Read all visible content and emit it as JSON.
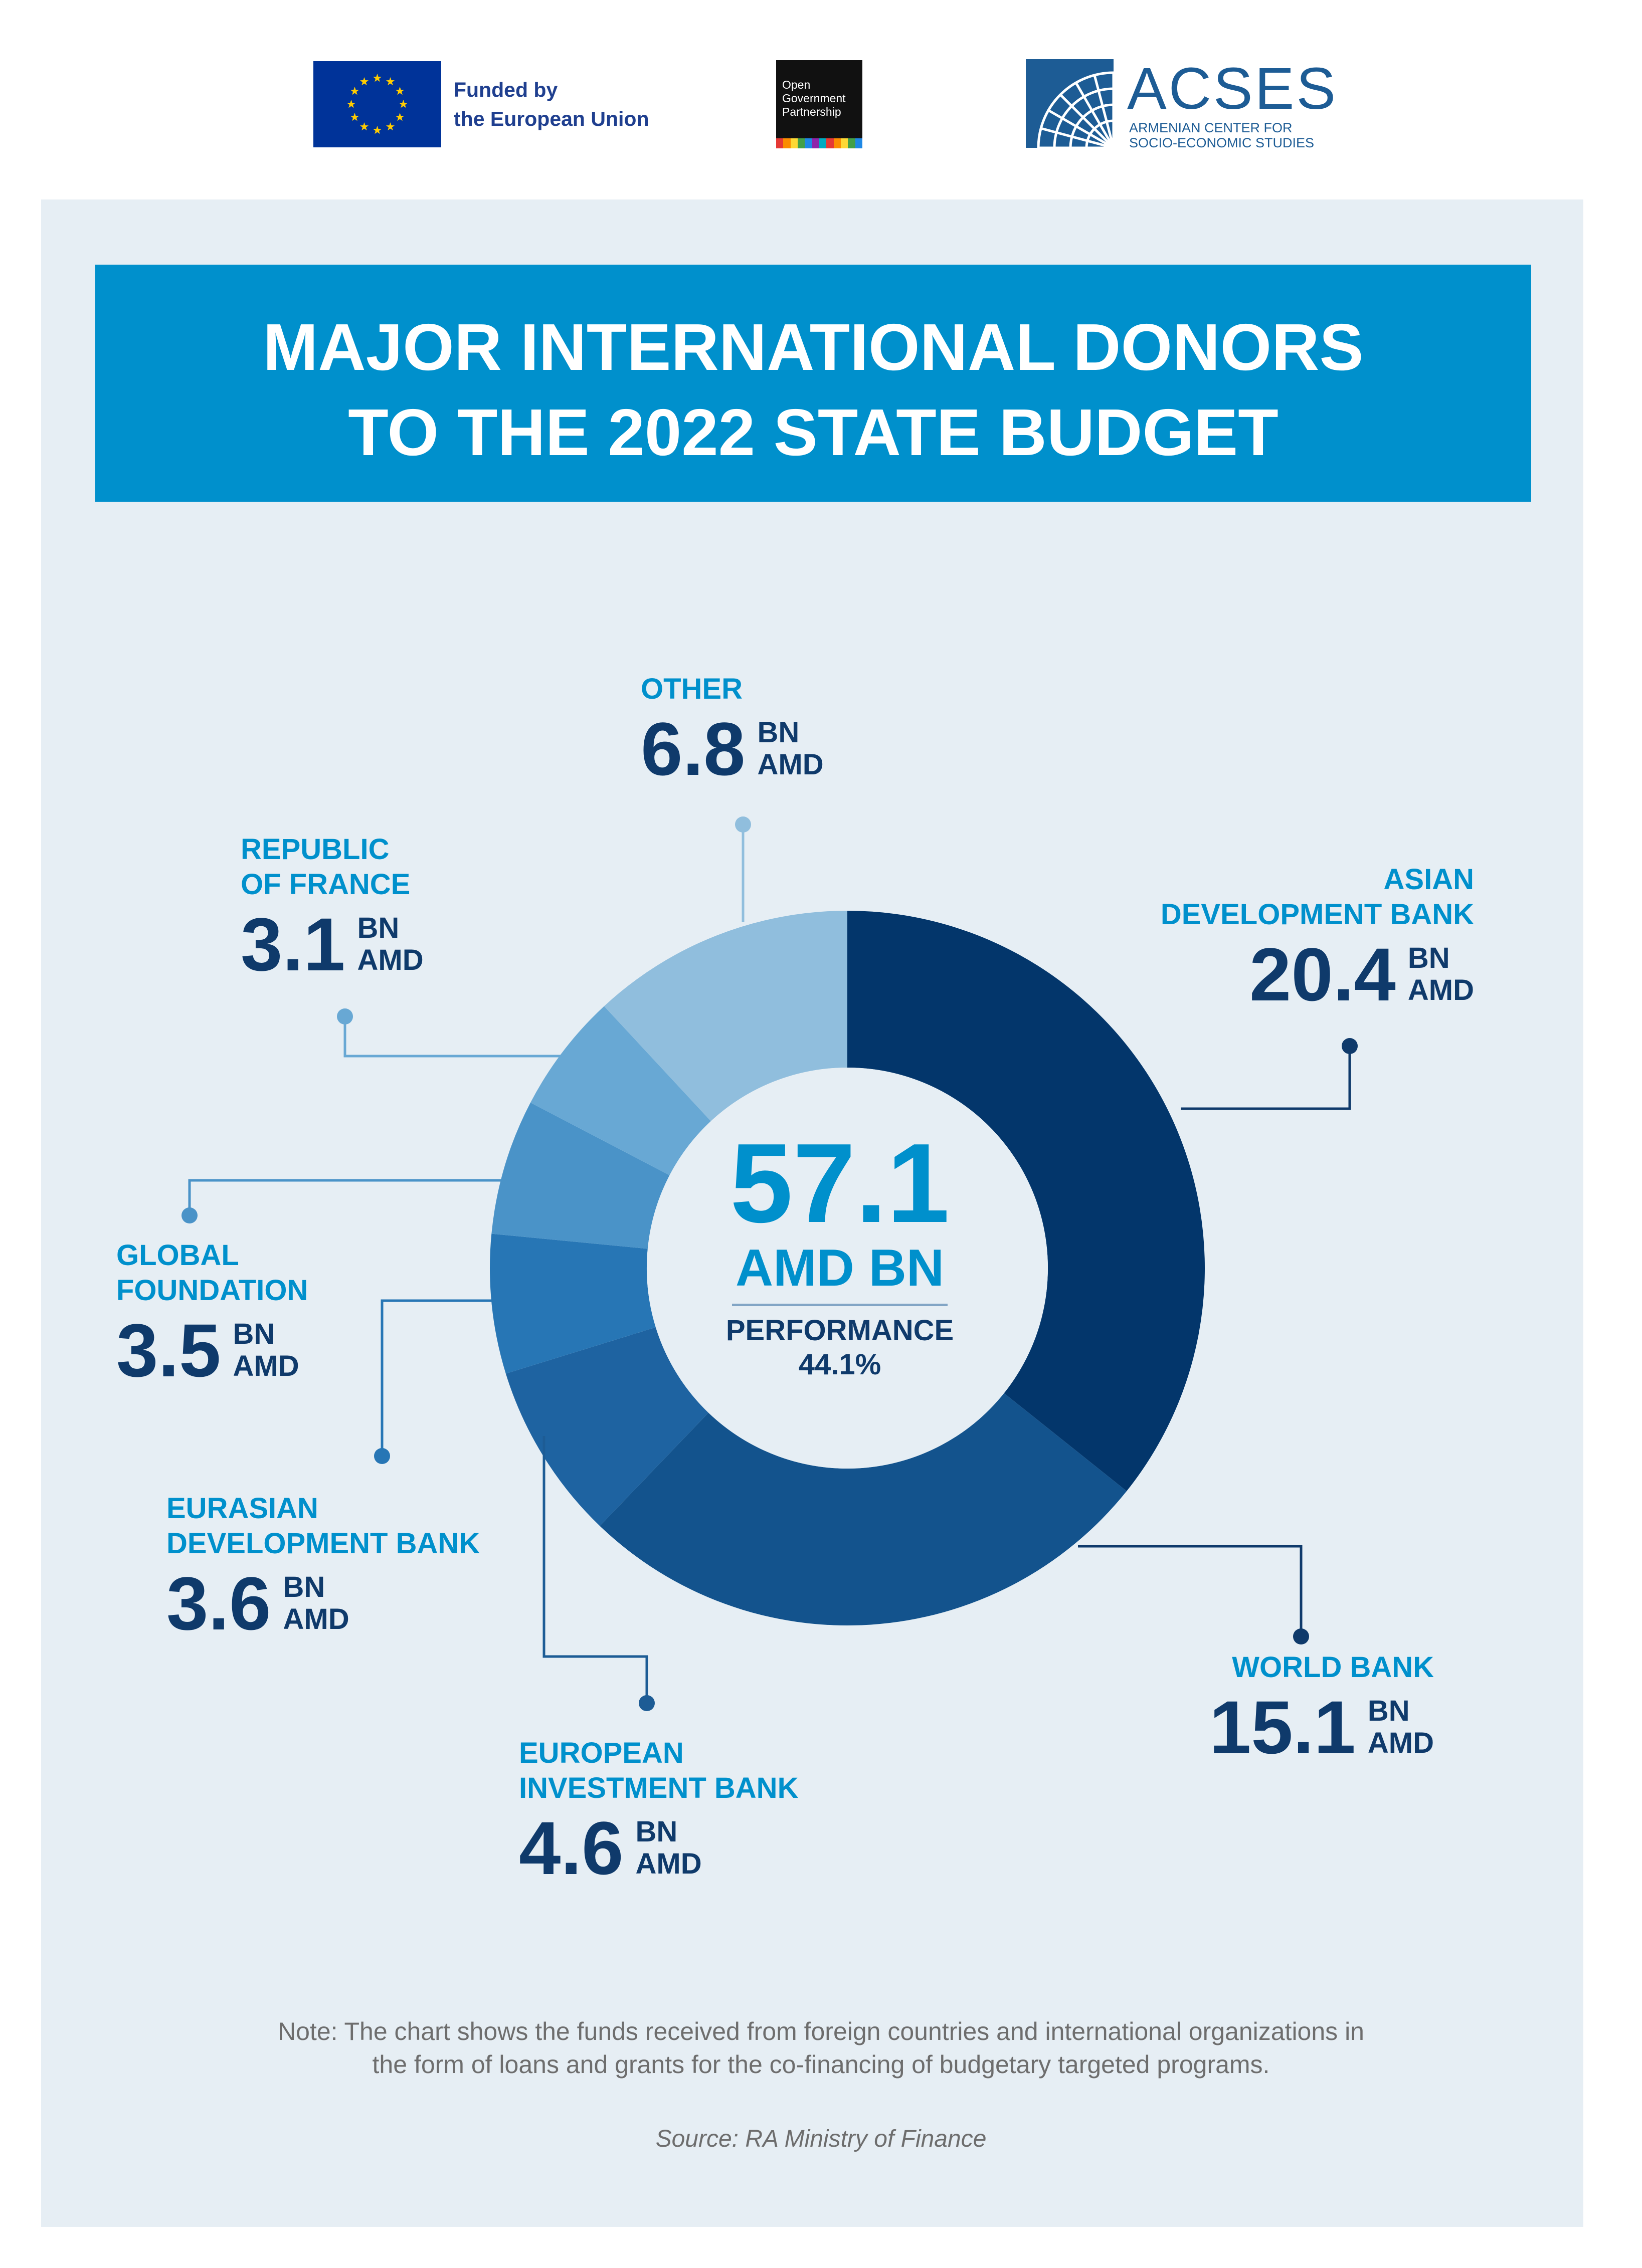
{
  "header": {
    "eu_text": "Funded by\nthe European Union",
    "ogp_text": "Open\nGovernment\nPartnership",
    "acses_name": "ACSES",
    "acses_sub": "ARMENIAN CENTER FOR\nSOCIO-ECONOMIC STUDIES",
    "ogp_stripe_colors": [
      "#e53935",
      "#fb8c00",
      "#fdd835",
      "#43a047",
      "#1e88e5",
      "#8e24aa",
      "#00acc1",
      "#e53935",
      "#fb8c00",
      "#fdd835",
      "#43a047",
      "#1e88e5"
    ]
  },
  "colors": {
    "panel_bg": "#e6eef4",
    "accent": "#0090cc",
    "dark": "#0f3a6b",
    "connector": "#1d5c95"
  },
  "center": {
    "total": "57.1",
    "unit": "AMD BN",
    "performance_label": "PERFORMANCE",
    "performance_value": "44.1%"
  },
  "chart_data": {
    "type": "pie",
    "title": "MAJOR INTERNATIONAL DONORS\nTO THE 2022 STATE BUDGET",
    "unit": "BN\nAMD",
    "total": 57.1,
    "series": [
      {
        "name": "ASIAN\nDEVELOPMENT BANK",
        "value": 20.4,
        "display": "20.4",
        "color": "#03366b"
      },
      {
        "name": "WORLD BANK",
        "value": 15.1,
        "display": "15.1",
        "color": "#13538d"
      },
      {
        "name": "EUROPEAN\nINVESTMENT BANK",
        "value": 4.6,
        "display": "4.6",
        "color": "#1e63a1"
      },
      {
        "name": "EURASIAN\nDEVELOPMENT BANK",
        "value": 3.6,
        "display": "3.6",
        "color": "#2776b5"
      },
      {
        "name": "GLOBAL\nFOUNDATION",
        "value": 3.5,
        "display": "3.5",
        "color": "#4a93c8"
      },
      {
        "name": "REPUBLIC\nOF FRANCE",
        "value": 3.1,
        "display": "3.1",
        "color": "#68a8d4"
      },
      {
        "name": "OTHER",
        "value": 6.8,
        "display": "6.8",
        "color": "#90bedd"
      }
    ]
  },
  "note": "Note: The chart shows the funds received from foreign countries and international organizations in\nthe form of loans and grants for the co-financing of  budgetary targeted programs.",
  "source": "Source: RA Ministry of Finance"
}
